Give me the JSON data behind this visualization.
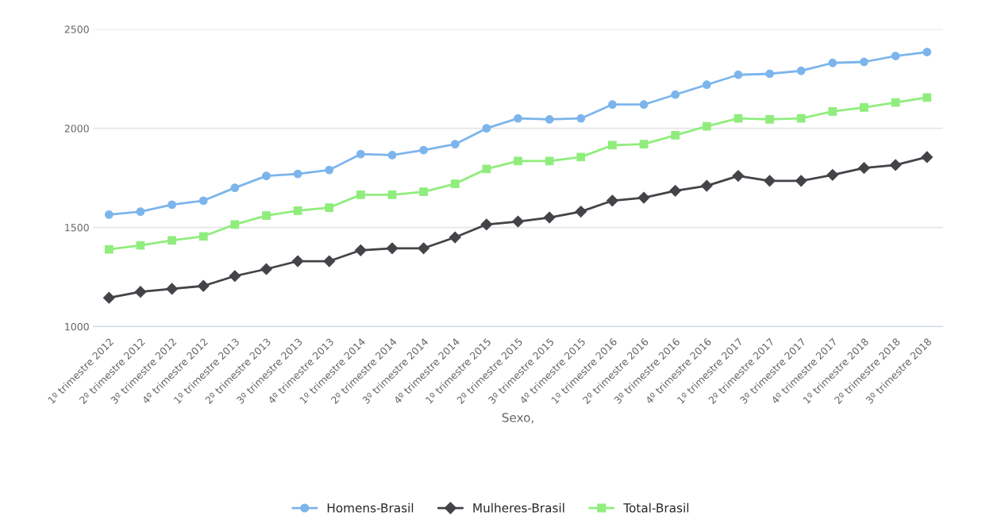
{
  "chart_data": {
    "type": "line",
    "xlabel": "Sexo,",
    "categories": [
      "1º trimestre 2012",
      "2º trimestre 2012",
      "3º trimestre 2012",
      "4º trimestre 2012",
      "1º trimestre 2013",
      "2º trimestre 2013",
      "3º trimestre 2013",
      "4º trimestre 2013",
      "1º trimestre 2014",
      "2º trimestre 2014",
      "3º trimestre 2014",
      "4º trimestre 2014",
      "1º trimestre 2015",
      "2º trimestre 2015",
      "3º trimestre 2015",
      "4º trimestre 2015",
      "1º trimestre 2016",
      "2º trimestre 2016",
      "3º trimestre 2016",
      "4º trimestre 2016",
      "1º trimestre 2017",
      "2º trimestre 2017",
      "3º trimestre 2017",
      "4º trimestre 2017",
      "1º trimestre 2018",
      "2º trimestre 2018",
      "3º trimestre 2018"
    ],
    "series": [
      {
        "name": "Homens-Brasil",
        "color": "#7cb5ec",
        "marker": "circle",
        "values": [
          1565,
          1580,
          1615,
          1635,
          1700,
          1760,
          1770,
          1790,
          1870,
          1865,
          1890,
          1920,
          2000,
          2050,
          2045,
          2050,
          2120,
          2120,
          2170,
          2220,
          2270,
          2275,
          2290,
          2330,
          2335,
          2365,
          2385
        ]
      },
      {
        "name": "Mulheres-Brasil",
        "color": "#434348",
        "marker": "diamond",
        "values": [
          1145,
          1175,
          1190,
          1205,
          1255,
          1290,
          1330,
          1330,
          1385,
          1395,
          1395,
          1450,
          1515,
          1530,
          1550,
          1580,
          1635,
          1650,
          1685,
          1710,
          1760,
          1735,
          1735,
          1765,
          1800,
          1815,
          1855
        ]
      },
      {
        "name": "Total-Brasil",
        "color": "#90ed7d",
        "marker": "square",
        "values": [
          1390,
          1410,
          1435,
          1455,
          1515,
          1560,
          1585,
          1600,
          1665,
          1665,
          1680,
          1720,
          1795,
          1835,
          1835,
          1855,
          1915,
          1920,
          1965,
          2010,
          2050,
          2045,
          2050,
          2085,
          2105,
          2130,
          2155
        ]
      }
    ],
    "ylim": [
      1000,
      2500
    ],
    "yticks": [
      1000,
      1500,
      2000,
      2500
    ],
    "grid": "y",
    "legend": "bottom"
  }
}
